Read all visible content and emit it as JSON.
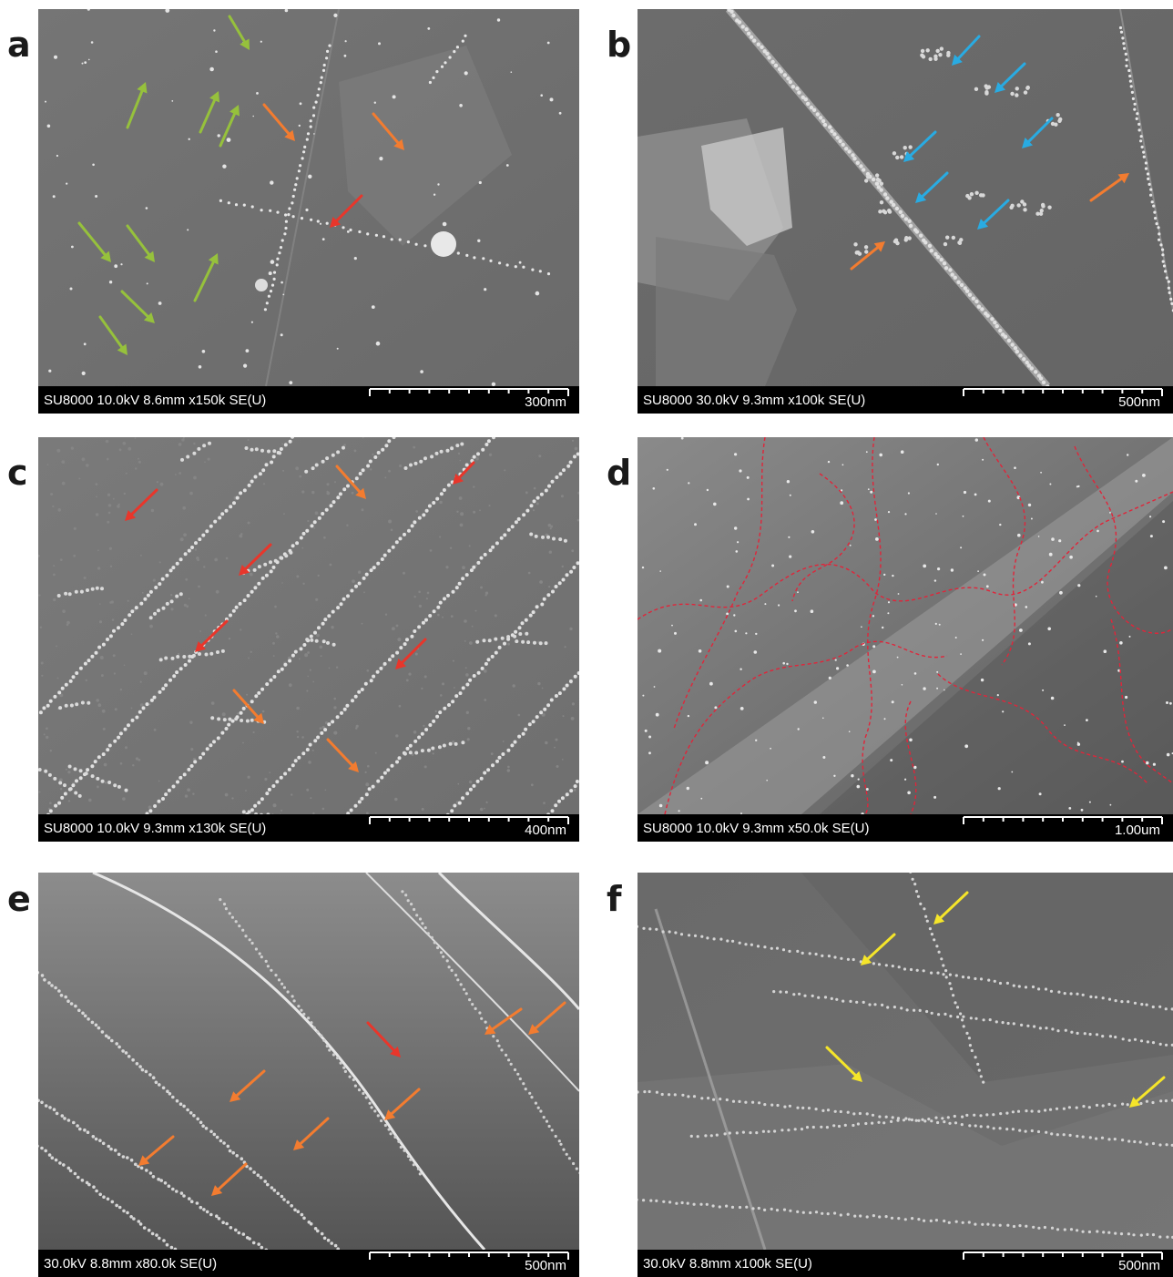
{
  "figure": {
    "panels": [
      {
        "label": "a",
        "info": "SU8000 10.0kV 8.6mm x150k SE(U)",
        "scale": "300nm",
        "arrow_colors": [
          "#96c13c",
          "#f37c30",
          "#e8362b"
        ]
      },
      {
        "label": "b",
        "info": "SU8000 30.0kV 9.3mm x100k SE(U)",
        "scale": "500nm",
        "arrow_colors": [
          "#29abe2",
          "#f37c30"
        ]
      },
      {
        "label": "c",
        "info": "SU8000 10.0kV 9.3mm x130k SE(U)",
        "scale": "400nm",
        "arrow_colors": [
          "#e8362b",
          "#f37c30"
        ]
      },
      {
        "label": "d",
        "info": "SU8000 10.0kV 9.3mm x50.0k SE(U)",
        "scale": "1.00um",
        "outline_color": "#e0253a"
      },
      {
        "label": "e",
        "info": "30.0kV 8.8mm x80.0k SE(U)",
        "scale": "500nm",
        "arrow_colors": [
          "#f37c30",
          "#e8362b"
        ]
      },
      {
        "label": "f",
        "info": "30.0kV 8.8mm x100k SE(U)",
        "scale": "500nm",
        "arrow_colors": [
          "#f5e52a"
        ]
      }
    ]
  }
}
